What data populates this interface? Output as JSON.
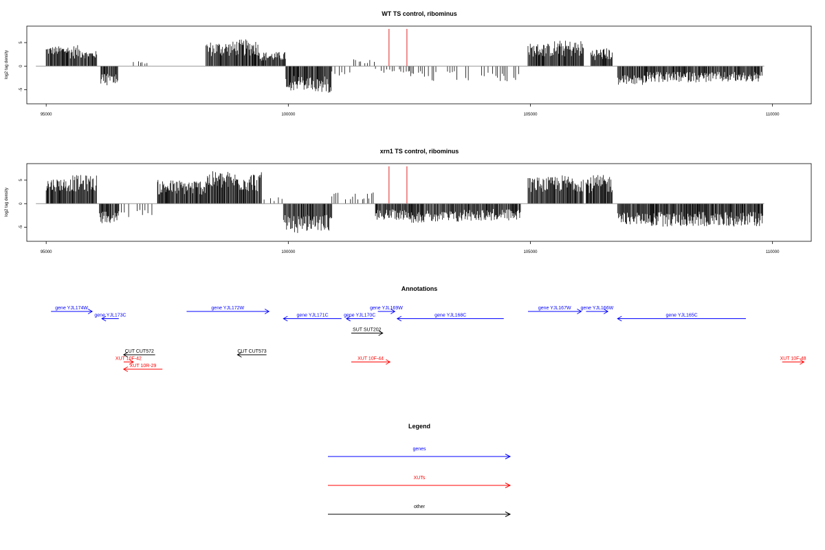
{
  "chart_data": [
    {
      "type": "bar",
      "title": "WT TS control, ribominus",
      "ylabel": "log2 tag density",
      "xlim": [
        94600,
        110800
      ],
      "ylim": [
        -8,
        8.5
      ],
      "xticks": [
        95000,
        100000,
        105000,
        110000
      ],
      "yticks": [
        -5,
        0,
        5
      ],
      "ytick_labels": [
        "-5",
        "0",
        "5"
      ],
      "highlight_x": [
        102080,
        102450
      ],
      "highlight_color": "#e02020",
      "bar_color": "#000000",
      "segments": [
        {
          "from": 95000,
          "to": 95450,
          "sign": 1,
          "base": 3.0,
          "var": 1.2
        },
        {
          "from": 95450,
          "to": 95800,
          "sign": 1,
          "base": 2.6,
          "var": 1.8
        },
        {
          "from": 95800,
          "to": 96050,
          "sign": 1,
          "base": 2.2,
          "var": 1.0
        },
        {
          "from": 96130,
          "to": 96480,
          "sign": -1,
          "base": 2.4,
          "var": 1.8
        },
        {
          "from": 96800,
          "to": 97100,
          "sign": 1,
          "base": 0.8,
          "var": 0.5,
          "sparse": true
        },
        {
          "from": 97720,
          "to": 97760,
          "sign": -1,
          "base": 1.0,
          "var": 0.3,
          "sparse": true
        },
        {
          "from": 98300,
          "to": 98900,
          "sign": 1,
          "base": 3.2,
          "var": 2.0
        },
        {
          "from": 98900,
          "to": 99400,
          "sign": 1,
          "base": 3.4,
          "var": 2.2
        },
        {
          "from": 99400,
          "to": 99950,
          "sign": 1,
          "base": 1.8,
          "var": 1.2
        },
        {
          "from": 99950,
          "to": 100500,
          "sign": -1,
          "base": 3.2,
          "var": 2.0
        },
        {
          "from": 100500,
          "to": 100900,
          "sign": -1,
          "base": 3.4,
          "var": 2.2
        },
        {
          "from": 100900,
          "to": 101300,
          "sign": -1,
          "base": 1.2,
          "var": 0.8,
          "sparse": true
        },
        {
          "from": 101300,
          "to": 101800,
          "sign": 1,
          "base": 0.9,
          "var": 0.6,
          "sparse": true
        },
        {
          "from": 101800,
          "to": 102500,
          "sign": -1,
          "base": 0.8,
          "var": 0.6,
          "sparse": true
        },
        {
          "from": 102500,
          "to": 104800,
          "sign": -1,
          "base": 1.8,
          "var": 1.4,
          "sparse": true
        },
        {
          "from": 104950,
          "to": 105500,
          "sign": 1,
          "base": 3.0,
          "var": 1.8
        },
        {
          "from": 105500,
          "to": 106100,
          "sign": 1,
          "base": 3.2,
          "var": 2.2
        },
        {
          "from": 106250,
          "to": 106700,
          "sign": 1,
          "base": 2.2,
          "var": 1.6
        },
        {
          "from": 106800,
          "to": 107400,
          "sign": -1,
          "base": 2.6,
          "var": 1.4
        },
        {
          "from": 107400,
          "to": 109800,
          "sign": -1,
          "base": 2.0,
          "var": 1.4
        }
      ]
    },
    {
      "type": "bar",
      "title": "xrn1 TS control, ribominus",
      "ylabel": "log2 tag density",
      "xlim": [
        94600,
        110800
      ],
      "ylim": [
        -8,
        8.5
      ],
      "xticks": [
        95000,
        100000,
        105000,
        110000
      ],
      "yticks": [
        -5,
        0,
        5
      ],
      "ytick_labels": [
        "-5",
        "0",
        "5"
      ],
      "highlight_x": [
        102080,
        102450
      ],
      "highlight_color": "#e02020",
      "bar_color": "#000000",
      "segments": [
        {
          "from": 95000,
          "to": 95550,
          "sign": 1,
          "base": 3.6,
          "var": 1.8
        },
        {
          "from": 95550,
          "to": 96050,
          "sign": 1,
          "base": 3.8,
          "var": 2.2
        },
        {
          "from": 96100,
          "to": 96500,
          "sign": -1,
          "base": 2.6,
          "var": 1.6
        },
        {
          "from": 96500,
          "to": 97200,
          "sign": -1,
          "base": 2.0,
          "var": 1.2,
          "sparse": true
        },
        {
          "from": 97300,
          "to": 98300,
          "sign": 1,
          "base": 3.0,
          "var": 2.0
        },
        {
          "from": 98300,
          "to": 98900,
          "sign": 1,
          "base": 4.4,
          "var": 2.4
        },
        {
          "from": 98900,
          "to": 99450,
          "sign": 1,
          "base": 4.0,
          "var": 2.6
        },
        {
          "from": 99500,
          "to": 99900,
          "sign": 1,
          "base": 0.8,
          "var": 0.5,
          "sparse": true
        },
        {
          "from": 99900,
          "to": 100400,
          "sign": -1,
          "base": 3.8,
          "var": 2.4
        },
        {
          "from": 100400,
          "to": 100900,
          "sign": -1,
          "base": 3.6,
          "var": 2.2
        },
        {
          "from": 100900,
          "to": 101800,
          "sign": 1,
          "base": 1.4,
          "var": 1.0,
          "sparse": true
        },
        {
          "from": 101800,
          "to": 102550,
          "sign": -1,
          "base": 2.0,
          "var": 1.4
        },
        {
          "from": 102550,
          "to": 103600,
          "sign": -1,
          "base": 2.4,
          "var": 1.6
        },
        {
          "from": 103600,
          "to": 104800,
          "sign": -1,
          "base": 2.0,
          "var": 1.6
        },
        {
          "from": 104950,
          "to": 105500,
          "sign": 1,
          "base": 3.6,
          "var": 2.0
        },
        {
          "from": 105500,
          "to": 106100,
          "sign": 1,
          "base": 3.8,
          "var": 2.2
        },
        {
          "from": 106150,
          "to": 106700,
          "sign": 1,
          "base": 3.6,
          "var": 2.4
        },
        {
          "from": 106800,
          "to": 107500,
          "sign": -1,
          "base": 2.8,
          "var": 1.6
        },
        {
          "from": 107500,
          "to": 109800,
          "sign": -1,
          "base": 2.8,
          "var": 2.0
        }
      ]
    }
  ],
  "annotations": {
    "title": "Annotations",
    "xlim": [
      94600,
      110800
    ],
    "items": [
      {
        "label": "gene YJL174W",
        "from": 95100,
        "to": 95950,
        "dir": "right",
        "row": 0,
        "color": "#0000ff"
      },
      {
        "label": "gene YJL173C",
        "from": 96150,
        "to": 96500,
        "dir": "left",
        "row": 1,
        "color": "#0000ff"
      },
      {
        "label": "gene YJL172W",
        "from": 97900,
        "to": 99600,
        "dir": "right",
        "row": 0,
        "color": "#0000ff"
      },
      {
        "label": "gene YJL171C",
        "from": 99900,
        "to": 101100,
        "dir": "left",
        "row": 1,
        "color": "#0000ff"
      },
      {
        "label": "gene YJL170C",
        "from": 101200,
        "to": 101750,
        "dir": "left",
        "row": 1,
        "color": "#0000ff"
      },
      {
        "label": "gene YJL169W",
        "from": 101850,
        "to": 102200,
        "dir": "right",
        "row": 0,
        "color": "#0000ff"
      },
      {
        "label": "gene YJL168C",
        "from": 102250,
        "to": 104450,
        "dir": "left",
        "row": 1,
        "color": "#0000ff"
      },
      {
        "label": "gene YJL167W",
        "from": 104950,
        "to": 106050,
        "dir": "right",
        "row": 0,
        "color": "#0000ff"
      },
      {
        "label": "gene YJL166W",
        "from": 106150,
        "to": 106600,
        "dir": "right",
        "row": 0,
        "color": "#0000ff"
      },
      {
        "label": "gene YJL165C",
        "from": 106800,
        "to": 109450,
        "dir": "left",
        "row": 1,
        "color": "#0000ff"
      },
      {
        "label": "SUT SUT202",
        "from": 101300,
        "to": 101950,
        "dir": "right",
        "row": 3,
        "color": "#000000"
      },
      {
        "label": "CUT CUT572",
        "from": 96600,
        "to": 97250,
        "dir": "left",
        "row": 6,
        "color": "#000000"
      },
      {
        "label": "CUT CUT573",
        "from": 98950,
        "to": 99550,
        "dir": "left",
        "row": 6,
        "color": "#000000"
      },
      {
        "label": "XUT 10F-42",
        "from": 96600,
        "to": 96800,
        "dir": "right",
        "row": 7,
        "color": "#ff0000"
      },
      {
        "label": "XUT 10R-29",
        "from": 96600,
        "to": 97400,
        "dir": "left",
        "row": 8,
        "color": "#ff0000"
      },
      {
        "label": "XUT 10F-44",
        "from": 101300,
        "to": 102100,
        "dir": "right",
        "row": 7,
        "color": "#ff0000"
      },
      {
        "label": "XUT 10F-48",
        "from": 110200,
        "to": 110650,
        "dir": "right",
        "row": 7,
        "color": "#ff0000"
      }
    ]
  },
  "legend": {
    "title": "Legend",
    "items": [
      {
        "label": "genes",
        "color": "#0000ff"
      },
      {
        "label": "XUTs",
        "color": "#ff0000"
      },
      {
        "label": "other",
        "color": "#000000"
      }
    ]
  }
}
